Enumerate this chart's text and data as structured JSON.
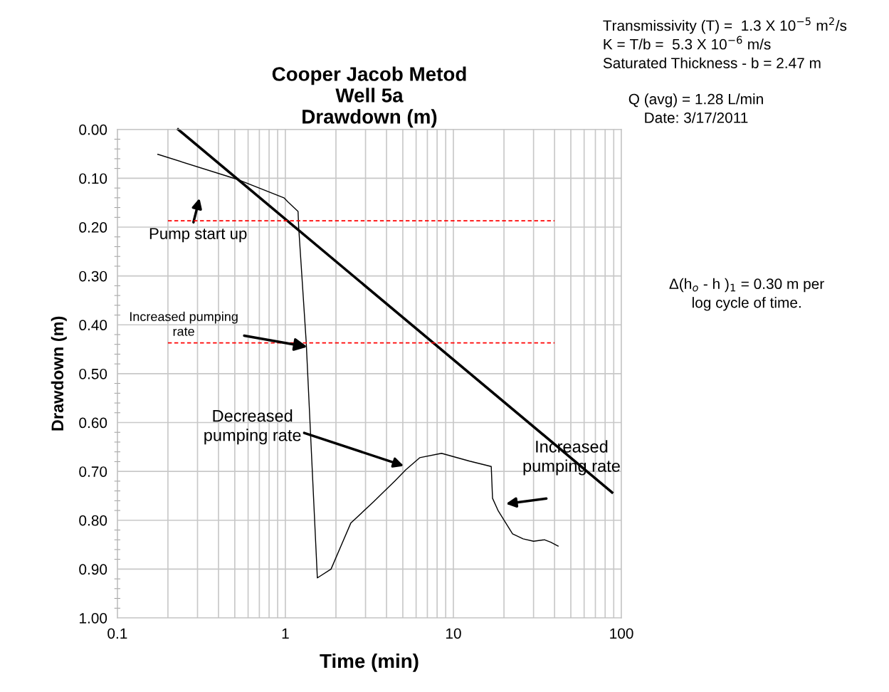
{
  "chart_data": {
    "type": "line",
    "title": "Cooper Jacob Metod\nWell 5a\nDrawdown (m)",
    "xlabel": "Time (min)",
    "ylabel": "Drawdown (m)",
    "log": "x",
    "xlim": [
      0.1,
      100
    ],
    "xticks": [
      0.1,
      1,
      10,
      100
    ],
    "ylim": [
      1.0,
      0.0
    ],
    "yticks": [
      {
        "value": 0.0,
        "label": "0.00"
      },
      {
        "value": 0.1,
        "label": "0.10"
      },
      {
        "value": 0.2,
        "label": "0.20"
      },
      {
        "value": 0.3,
        "label": "0.30"
      },
      {
        "value": 0.4,
        "label": "0.40"
      },
      {
        "value": 0.5,
        "label": "0.50"
      },
      {
        "value": 0.6,
        "label": "0.60"
      },
      {
        "value": 0.7,
        "label": "0.70"
      },
      {
        "value": 0.8,
        "label": "0.80"
      },
      {
        "value": 0.9,
        "label": "0.90"
      },
      {
        "value": 1.0,
        "label": "1.00"
      }
    ],
    "grid": true,
    "marker": "none",
    "series": [
      {
        "color": "#000000",
        "line_style": "solid",
        "x": [
          0.174,
          0.515,
          0.98,
          1.04,
          1.19,
          1.2,
          1.33,
          1.55,
          1.87,
          2.45,
          3.35,
          4.5,
          5.2,
          6.3,
          8.5,
          12.5,
          16.8,
          17.1,
          18.5,
          22.5,
          26,
          30,
          34.8,
          38,
          42
        ],
        "values": [
          0.051,
          0.102,
          0.14,
          0.149,
          0.168,
          0.2,
          0.434,
          0.918,
          0.9,
          0.806,
          0.762,
          0.719,
          0.697,
          0.672,
          0.663,
          0.679,
          0.69,
          0.755,
          0.781,
          0.828,
          0.838,
          0.843,
          0.84,
          0.845,
          0.853
        ]
      },
      {
        "color": "#000000",
        "line_style": "solid",
        "x": [
          0.23,
          88
        ],
        "values": [
          0.0,
          0.743
        ]
      },
      {
        "color": "#ff0000",
        "line_style": "dashed",
        "x": [
          0.2,
          40
        ],
        "values": [
          0.187,
          0.187
        ]
      },
      {
        "color": "#ff0000",
        "line_style": "dashed",
        "x": [
          0.2,
          40
        ],
        "values": [
          0.437,
          0.437
        ]
      }
    ],
    "annotations": [
      "Pump start up",
      {
        "text": "Increased pumping\nrate",
        "x": 1.35,
        "y": 0.445
      },
      "Decreased\npumping rate",
      "Increased\npumping rate",
      "Transmissivity (T) =  1.3 X 10$^{−5}$ m$^{2}$/s\nK = T/b =  5.3 X 10$^{−6}$ m/s\nSaturated Thickness - b = 2.47 m",
      "Q (avg) = 1.28 L/min\nDate: 3/17/2011",
      "Δ(h$_{o}$ - h )$_{1}$ = 0.30 m per\nlog cycle of time."
    ]
  }
}
